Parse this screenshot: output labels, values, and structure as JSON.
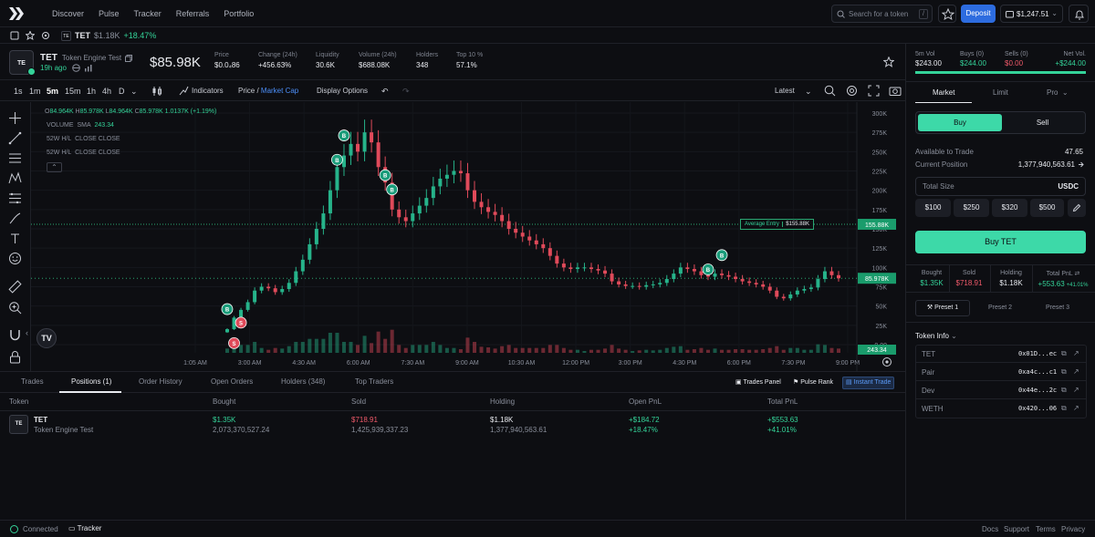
{
  "nav": {
    "items": [
      "Discover",
      "Pulse",
      "Tracker",
      "Referrals",
      "Portfolio"
    ]
  },
  "search": {
    "placeholder": "Search for a token",
    "shortcut": "/"
  },
  "header_actions": {
    "deposit": "Deposit",
    "balance": "$1,247.51"
  },
  "ticker": {
    "symbol": "TET",
    "price": "$1.18K",
    "change": "+18.47%"
  },
  "token": {
    "avatar": "TE",
    "symbol": "TET",
    "name": "Token Engine Test",
    "age": "19h ago",
    "market_cap": "$85.98K",
    "stats": [
      {
        "label": "Price",
        "value": "$0.0₄86",
        "color": "#e8eaef"
      },
      {
        "label": "Change (24h)",
        "value": "+456.63%",
        "color": "#34d399"
      },
      {
        "label": "Liquidity",
        "value": "30.6K",
        "color": "#e8eaef"
      },
      {
        "label": "Volume (24h)",
        "value": "$688.08K",
        "color": "#e8eaef"
      },
      {
        "label": "Holders",
        "value": "348",
        "color": "#e8eaef"
      },
      {
        "label": "Top 10 %",
        "value": "57.1%",
        "color": "#e8eaef"
      }
    ]
  },
  "chart_toolbar": {
    "timeframes": [
      "1s",
      "1m",
      "5m",
      "15m",
      "1h",
      "4h",
      "D"
    ],
    "indicators": "Indicators",
    "price_label": "Price",
    "mcap_label": "Market Cap",
    "display_options": "Display Options",
    "latest": "Latest"
  },
  "chart_data": {
    "type": "candlestick",
    "ohlc_legend": {
      "o": "84.964K",
      "h": "85.978K",
      "l": "84.964K",
      "c": "85.978K",
      "chg": "1.0137K (+1.19%)"
    },
    "indicators": [
      {
        "name": "VOLUME",
        "params": "SMA",
        "value": "243.34"
      },
      {
        "name": "52W H/L",
        "params": "CLOSE CLOSE"
      },
      {
        "name": "52W H/L",
        "params": "CLOSE CLOSE"
      }
    ],
    "y_ticks": [
      "300K",
      "275K",
      "250K",
      "225K",
      "200K",
      "175K",
      "150K",
      "125K",
      "100K",
      "75K",
      "50K",
      "25K",
      "0.00"
    ],
    "ylim": [
      0,
      300000
    ],
    "x_ticks": [
      "1:05 AM",
      "3:00 AM",
      "4:30 AM",
      "6:00 AM",
      "7:30 AM",
      "9:00 AM",
      "10:30 AM",
      "12:00 PM",
      "3:00 PM",
      "4:30 PM",
      "6:00 PM",
      "7:30 PM",
      "9:00 PM"
    ],
    "average_entry": {
      "label": "Average Entry",
      "value": "$155.88K",
      "price": 155880,
      "axis_label": "155.88K"
    },
    "last_price": {
      "value": 85978,
      "axis_label": "85.978K"
    },
    "volume_label": "243.34",
    "close_series": [
      20000,
      35000,
      45000,
      55000,
      70000,
      75000,
      73000,
      68000,
      72000,
      80000,
      95000,
      110000,
      130000,
      150000,
      170000,
      200000,
      230000,
      245000,
      260000,
      250000,
      275000,
      262000,
      230000,
      210000,
      175000,
      165000,
      160000,
      170000,
      180000,
      190000,
      205000,
      215000,
      220000,
      225000,
      222000,
      200000,
      185000,
      178000,
      172000,
      168000,
      160000,
      150000,
      145000,
      140000,
      135000,
      130000,
      125000,
      115000,
      105000,
      100000,
      98000,
      100000,
      100000,
      98000,
      96000,
      92000,
      82000,
      78000,
      76000,
      76000,
      75000,
      77000,
      78000,
      80000,
      85000,
      92000,
      100000,
      98000,
      95000,
      90000,
      88000,
      92000,
      90000,
      88000,
      85000,
      82000,
      80000,
      78000,
      75000,
      70000,
      62000,
      60000,
      65000,
      70000,
      72000,
      74000,
      85000,
      95000,
      90000,
      85978
    ]
  },
  "bottom_tabs": {
    "tabs": [
      "Trades",
      "Positions (1)",
      "Order History",
      "Open Orders",
      "Holders (348)",
      "Top Traders"
    ],
    "actions": [
      "Trades Panel",
      "Pulse Rank",
      "Instant Trade"
    ]
  },
  "positions": {
    "headers": [
      "Token",
      "Bought",
      "Sold",
      "Holding",
      "Open PnL",
      "Total PnL"
    ],
    "row": {
      "avatar": "TE",
      "symbol": "TET",
      "name": "Token Engine Test",
      "bought_usd": "$1.35K",
      "bought_amt": "2,073,370,527.24",
      "sold_usd": "$718.91",
      "sold_amt": "1,425,939,337.23",
      "holding_usd": "$1.18K",
      "holding_amt": "1,377,940,563.61",
      "open_pnl": "+$184.72",
      "open_pnl_pct": "+18.47%",
      "total_pnl": "+$553.63",
      "total_pnl_pct": "+41.01%"
    }
  },
  "right_panel": {
    "stats": [
      {
        "label": "5m Vol",
        "value": "$243.00",
        "color": "#e8eaef"
      },
      {
        "label": "Buys (0)",
        "value": "$244.00",
        "color": "#34d399"
      },
      {
        "label": "Sells (0)",
        "value": "$0.00",
        "color": "#f05a6a"
      },
      {
        "label": "Net Vol.",
        "value": "+$244.00",
        "color": "#34d399"
      }
    ],
    "order_tabs": [
      "Market",
      "Limit",
      "Pro"
    ],
    "buy": "Buy",
    "sell": "Sell",
    "available_label": "Available to Trade",
    "available_value": "47.65",
    "position_label": "Current Position",
    "position_value": "1,377,940,563.61",
    "size_placeholder": "Total Size",
    "size_currency": "USDC",
    "presets": [
      "$100",
      "$250",
      "$320",
      "$500"
    ],
    "buy_button": "Buy TET",
    "summary": [
      {
        "label": "Bought",
        "value": "$1.35K",
        "color": "#34d399"
      },
      {
        "label": "Sold",
        "value": "$718.91",
        "color": "#f05a6a"
      },
      {
        "label": "Holding",
        "value": "$1.18K",
        "color": "#e8eaef"
      },
      {
        "label": "Total PnL",
        "value": "+553.63",
        "extra": "+41.01%",
        "color": "#34d399"
      }
    ],
    "preset_tabs": [
      "Preset 1",
      "Preset 2",
      "Preset 3"
    ],
    "token_info_title": "Token Info",
    "token_info": [
      {
        "label": "TET",
        "value": "0x01D...ec"
      },
      {
        "label": "Pair",
        "value": "0xa4c...c1"
      },
      {
        "label": "Dev",
        "value": "0x44e...2c"
      },
      {
        "label": "WETH",
        "value": "0x420...06"
      }
    ]
  },
  "footer": {
    "status": "Connected",
    "tracker": "Tracker",
    "links": [
      "Docs",
      "Support",
      "Terms",
      "Privacy"
    ]
  }
}
